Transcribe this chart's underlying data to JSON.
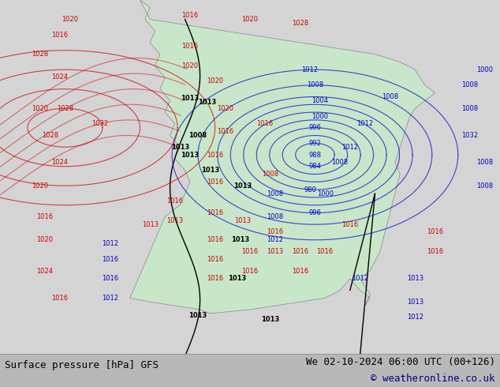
{
  "title_left": "Surface pressure [hPa] GFS",
  "title_right": "We 02-10-2024 06:00 UTC (00+126)",
  "copyright": "© weatheronline.co.uk",
  "bg_color": "#d0d0d0",
  "land_color": "#c8e6c9",
  "ocean_color": "#d0d0d0",
  "bottom_bar_color": "#c8c8c8",
  "title_fontsize": 9,
  "copyright_fontsize": 9,
  "fig_width": 6.34,
  "fig_height": 4.9,
  "dpi": 100
}
